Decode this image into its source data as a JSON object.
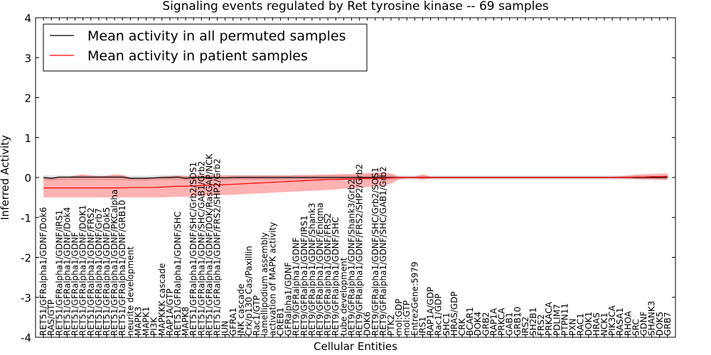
{
  "chart_data": {
    "type": "line",
    "title": "Signaling events regulated by Ret tyrosine kinase -- 69 samples",
    "xlabel": "Cellular Entities",
    "ylabel": "Inferred Activity",
    "ylim": [
      -4,
      4
    ],
    "yticks": [
      -4,
      -3,
      -2,
      -1,
      0,
      1,
      2,
      3,
      4
    ],
    "legend_position": "top-left",
    "categories": [
      "RET51/GFRalpha1/GDNF/Dok6",
      "RAS/GTP",
      "RET51/GFRalpha1/GDNF/IRS1",
      "RET51/GFRalpha1/GDNF/Dok4",
      "RET51/GFRalpha1/GDNF",
      "RET51/GFRalpha1/GDNF/DOK1",
      "RET51/GFRalpha1/GDNF/FRS2",
      "RET51/GFRalpha1/GDNF/Grb7",
      "RET51/GFRalpha1/GDNF/Dok5",
      "RET51/GFRalpha1/GDNF/PKCalpha",
      "RET51/GFRalpha1/GDNF/GRB10",
      "neurite development",
      "MAPK3",
      "MAPK1",
      "PI3K",
      "MAPKKK cascade",
      "RAP1A/GTP",
      "RET51/GFRalpha1/GDNF/SHC",
      "MAPK8",
      "RET51/GFRalpha1/GDNF/SHC/Grb2/SOS1",
      "RET51/GFRalpha1/GDNF/SHC/GAB1/Grb2",
      "RET51/GFRalpha1/GDNF/DOK/RasGAP/NCK",
      "RET51/GFRalpha1/GDNF/FRS2/SHP2/Grb2",
      "JUN",
      "GFRA1",
      "JNK cascade",
      "Crk/p130 Cas/Paxillin",
      "Rac1/GTP",
      "lamellipodium assembly",
      "activation of MAPK activity",
      "CREB1",
      "GFRalpha1/GDNF",
      "RET9/GFRalpha1/GDNF",
      "RET9/GFRalpha1/GDNF/IRS1",
      "RET9/GFRalpha1/GDNF/Shank3",
      "RET9/GFRalpha1/GDNF/Enigma",
      "RET9/GFRalpha1/GDNF/FRS2",
      "RET9/GFRalpha1/GDNF/SHC",
      "tube development",
      "RET9/GFRalpha1/GDNF/Shank3/Grb2",
      "RET9/GFRalpha1/GDNF/FRS2/SHP2/Grb2",
      "DOK6",
      "RET9/GFRalpha1/GDNF/SHC/Grb2/SOS1",
      "RET9/GFRalpha1/GDNF/SHC/GAB1/Grb2",
      "PTK2",
      "mol:GDP",
      "mol:GTP",
      "EntrezGene:5979",
      "IRS1",
      "RAP1A/GDP",
      "Rac1/GDP",
      "SHC1",
      "HRAS/GDP",
      "CRK",
      "BCAR1",
      "DOK4",
      "GRB2",
      "RAP1A",
      "PRKCA",
      "GAB1",
      "GRB10",
      "IRS2",
      "SH2B1",
      "FRS2",
      "PRKACA",
      "PDLIM7",
      "PTPN11",
      "PXN",
      "RAC1",
      "DOK1",
      "HRAS",
      "NCK1",
      "PIK3CA",
      "RASA1",
      "RHOA",
      "SRC",
      "GDNF",
      "SHANK3",
      "DOK5",
      "GRB7"
    ],
    "series": [
      {
        "name": "Mean activity in all permuted samples",
        "color": "#000000",
        "values": [
          0.0,
          -0.02,
          0.01,
          0.01,
          0.01,
          0.01,
          0.01,
          0.01,
          0.01,
          0.01,
          0.01,
          -0.02,
          -0.02,
          -0.02,
          -0.01,
          0.0,
          0.0,
          0.01,
          -0.02,
          0.0,
          0.0,
          0.0,
          0.0,
          -0.01,
          0.0,
          0.0,
          0.0,
          0.0,
          0.0,
          0.0,
          0.0,
          0.0,
          0.0,
          0.0,
          0.0,
          0.0,
          0.0,
          0.0,
          0.0,
          0.0,
          0.0,
          0.0,
          0.0,
          0.0,
          0.0,
          0.0,
          0.0,
          0.0,
          0.0,
          0.0,
          0.0,
          0.0,
          0.0,
          0.0,
          0.0,
          0.0,
          0.0,
          0.0,
          0.0,
          0.0,
          0.0,
          0.0,
          0.0,
          0.0,
          0.0,
          0.0,
          0.0,
          0.0,
          0.0,
          0.0,
          0.0,
          0.0,
          0.0,
          0.0,
          0.0,
          0.0,
          0.0,
          0.0,
          0.0,
          0.0
        ],
        "band_low": [
          -0.06,
          -0.08,
          -0.06,
          -0.06,
          -0.06,
          -0.06,
          -0.06,
          -0.06,
          -0.06,
          -0.06,
          -0.06,
          -0.08,
          -0.08,
          -0.08,
          -0.07,
          -0.06,
          -0.06,
          -0.06,
          -0.08,
          -0.06,
          -0.06,
          -0.06,
          -0.06,
          -0.07,
          -0.06,
          -0.06,
          -0.06,
          -0.06,
          -0.06,
          -0.06,
          -0.06,
          -0.06,
          -0.06,
          -0.06,
          -0.06,
          -0.06,
          -0.06,
          -0.06,
          -0.06,
          -0.06,
          -0.06,
          -0.06,
          -0.06,
          -0.06,
          -0.06,
          -0.05,
          -0.05,
          -0.05,
          -0.05,
          -0.05,
          -0.05,
          -0.05,
          -0.05,
          -0.05,
          -0.05,
          -0.05,
          -0.05,
          -0.05,
          -0.05,
          -0.05,
          -0.05,
          -0.05,
          -0.05,
          -0.05,
          -0.05,
          -0.05,
          -0.05,
          -0.05,
          -0.05,
          -0.05,
          -0.05,
          -0.05,
          -0.05,
          -0.05,
          -0.05,
          -0.05,
          -0.05,
          -0.05,
          -0.05,
          -0.05
        ],
        "band_high": [
          0.06,
          0.04,
          0.06,
          0.06,
          0.06,
          0.06,
          0.06,
          0.06,
          0.06,
          0.06,
          0.06,
          0.04,
          0.04,
          0.04,
          0.05,
          0.06,
          0.06,
          0.06,
          0.04,
          0.06,
          0.06,
          0.06,
          0.06,
          0.05,
          0.06,
          0.06,
          0.06,
          0.06,
          0.06,
          0.06,
          0.06,
          0.06,
          0.06,
          0.06,
          0.06,
          0.06,
          0.06,
          0.06,
          0.06,
          0.06,
          0.06,
          0.06,
          0.06,
          0.06,
          0.06,
          0.05,
          0.05,
          0.05,
          0.05,
          0.05,
          0.05,
          0.05,
          0.05,
          0.05,
          0.05,
          0.05,
          0.05,
          0.05,
          0.05,
          0.05,
          0.05,
          0.05,
          0.05,
          0.05,
          0.05,
          0.05,
          0.05,
          0.05,
          0.05,
          0.05,
          0.05,
          0.05,
          0.05,
          0.05,
          0.05,
          0.05,
          0.05,
          0.05,
          0.05,
          0.05
        ]
      },
      {
        "name": "Mean activity in patient samples",
        "color": "#ff0000",
        "values": [
          -0.26,
          -0.26,
          -0.26,
          -0.26,
          -0.26,
          -0.26,
          -0.26,
          -0.26,
          -0.26,
          -0.26,
          -0.26,
          -0.25,
          -0.25,
          -0.25,
          -0.25,
          -0.24,
          -0.23,
          -0.22,
          -0.22,
          -0.21,
          -0.2,
          -0.19,
          -0.18,
          -0.18,
          -0.17,
          -0.16,
          -0.15,
          -0.14,
          -0.13,
          -0.12,
          -0.11,
          -0.1,
          -0.09,
          -0.08,
          -0.07,
          -0.06,
          -0.05,
          -0.05,
          -0.04,
          -0.04,
          -0.03,
          -0.02,
          -0.02,
          -0.02,
          -0.01,
          0.0,
          0.0,
          0.0,
          0.0,
          0.0,
          0.0,
          0.0,
          0.0,
          0.0,
          0.0,
          0.0,
          0.0,
          0.0,
          0.0,
          0.0,
          0.0,
          0.0,
          0.0,
          0.0,
          0.0,
          0.0,
          0.0,
          0.0,
          0.0,
          0.0,
          0.0,
          0.0,
          0.0,
          0.0,
          0.0,
          0.01,
          0.01,
          0.02,
          0.02,
          0.03
        ],
        "band_low": [
          -0.5,
          -0.5,
          -0.5,
          -0.5,
          -0.5,
          -0.5,
          -0.5,
          -0.5,
          -0.5,
          -0.5,
          -0.5,
          -0.5,
          -0.5,
          -0.5,
          -0.5,
          -0.5,
          -0.49,
          -0.48,
          -0.48,
          -0.47,
          -0.46,
          -0.45,
          -0.44,
          -0.44,
          -0.43,
          -0.42,
          -0.41,
          -0.4,
          -0.39,
          -0.38,
          -0.37,
          -0.36,
          -0.35,
          -0.34,
          -0.33,
          -0.32,
          -0.31,
          -0.3,
          -0.28,
          -0.27,
          -0.26,
          -0.24,
          -0.22,
          -0.2,
          -0.15,
          -0.05,
          -0.02,
          -0.02,
          -0.05,
          -0.02,
          -0.02,
          -0.02,
          -0.02,
          -0.02,
          -0.02,
          -0.02,
          -0.02,
          -0.02,
          -0.02,
          -0.02,
          -0.02,
          -0.02,
          -0.02,
          -0.02,
          -0.02,
          -0.02,
          -0.02,
          -0.02,
          -0.02,
          -0.02,
          -0.02,
          -0.02,
          -0.02,
          -0.02,
          -0.03,
          -0.04,
          -0.05,
          -0.05,
          -0.06,
          -0.06
        ],
        "band_high": [
          -0.02,
          0.0,
          0.0,
          0.0,
          0.05,
          0.08,
          0.05,
          0.03,
          0.04,
          0.08,
          0.06,
          0.0,
          -0.02,
          0.0,
          0.0,
          0.02,
          0.03,
          0.05,
          0.04,
          0.05,
          0.06,
          0.06,
          0.05,
          0.05,
          0.05,
          0.05,
          0.05,
          0.05,
          0.05,
          0.05,
          0.05,
          0.05,
          0.06,
          0.06,
          0.06,
          0.07,
          0.07,
          0.08,
          0.09,
          0.09,
          0.1,
          0.11,
          0.12,
          0.13,
          0.1,
          0.02,
          0.02,
          0.02,
          0.08,
          0.02,
          0.02,
          0.02,
          0.02,
          0.02,
          0.02,
          0.02,
          0.02,
          0.02,
          0.02,
          0.02,
          0.02,
          0.02,
          0.02,
          0.02,
          0.02,
          0.02,
          0.02,
          0.02,
          0.02,
          0.02,
          0.02,
          0.02,
          0.02,
          0.03,
          0.05,
          0.07,
          0.08,
          0.09,
          0.1,
          0.1
        ]
      }
    ]
  }
}
